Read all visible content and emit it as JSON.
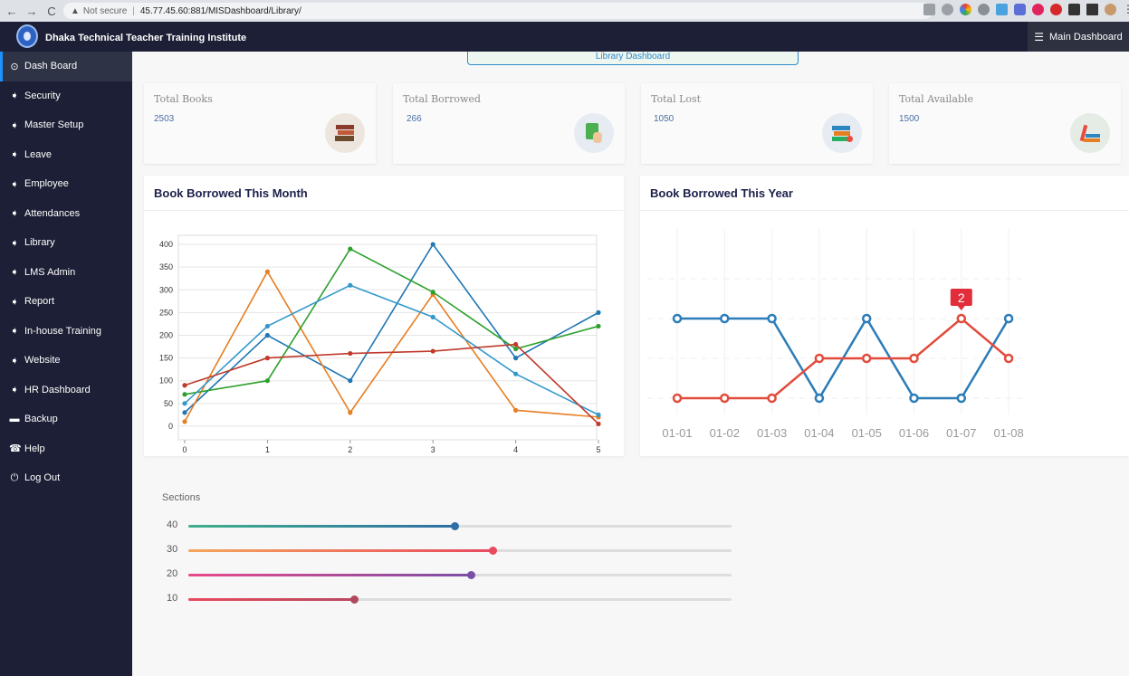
{
  "browser": {
    "not_secure": "Not secure",
    "url": "45.77.45.60:881/MISDashboard/Library/"
  },
  "header": {
    "title": "Dhaka Technical Teacher Training Institute",
    "main_dashboard": "Main Dashboard"
  },
  "sidebar": {
    "items": [
      {
        "label": "Dash Board",
        "icon": "dashboard-icon",
        "glyph": "⊙",
        "active": true
      },
      {
        "label": "Security",
        "icon": "tag-icon",
        "glyph": "➧"
      },
      {
        "label": "Master Setup",
        "icon": "tag-icon",
        "glyph": "➧"
      },
      {
        "label": "Leave",
        "icon": "tag-icon",
        "glyph": "➧"
      },
      {
        "label": "Employee",
        "icon": "tag-icon",
        "glyph": "➧"
      },
      {
        "label": "Attendances",
        "icon": "tag-icon",
        "glyph": "➧"
      },
      {
        "label": "Library",
        "icon": "tag-icon",
        "glyph": "➧"
      },
      {
        "label": "LMS Admin",
        "icon": "tag-icon",
        "glyph": "➧"
      },
      {
        "label": "Report",
        "icon": "tag-icon",
        "glyph": "➧"
      },
      {
        "label": "In-house Training",
        "icon": "tag-icon",
        "glyph": "➧"
      },
      {
        "label": "Website",
        "icon": "tag-icon",
        "glyph": "➧"
      },
      {
        "label": "HR Dashboard",
        "icon": "tag-icon",
        "glyph": "➧"
      },
      {
        "label": "Backup",
        "icon": "drive-icon",
        "glyph": "▬"
      },
      {
        "label": "Help",
        "icon": "phone-icon",
        "glyph": "☎"
      },
      {
        "label": "Log Out",
        "icon": "power-icon",
        "glyph": "⏻"
      }
    ]
  },
  "main": {
    "tab_label": "Library Dashboard",
    "stats": [
      {
        "title": "Total Books",
        "value": "2503",
        "icon": "books-icon",
        "bg": "#ede6df"
      },
      {
        "title": "Total Borrowed",
        "value": "266",
        "icon": "book-hand-icon",
        "bg": "#e6ecf2"
      },
      {
        "title": "Total Lost",
        "value": "1050",
        "icon": "lost-books-icon",
        "bg": "#e6ecf2"
      },
      {
        "title": "Total Available",
        "value": "1500",
        "icon": "available-books-icon",
        "bg": "#e5ebe5"
      }
    ],
    "sections": {
      "title": "Sections",
      "sliders": [
        {
          "label": "40",
          "value": 0.49,
          "from": "#3fb08a",
          "to": "#2e6fa5",
          "thumb": "#2e6fa5"
        },
        {
          "label": "30",
          "value": 0.56,
          "from": "#f5a65b",
          "to": "#e84a5f",
          "thumb": "#e84a5f"
        },
        {
          "label": "20",
          "value": 0.52,
          "from": "#e84a8a",
          "to": "#7b4fa5",
          "thumb": "#7b4fa5"
        },
        {
          "label": "10",
          "value": 0.305,
          "from": "#e84a5f",
          "to": "#b84a5f",
          "thumb": "#b04a5a"
        }
      ]
    }
  },
  "chart_data": [
    {
      "type": "line",
      "title": "Book Borrowed This Month",
      "x": [
        0,
        1,
        2,
        3,
        4,
        5
      ],
      "ylim": [
        -30,
        420
      ],
      "yticks": [
        0,
        50,
        100,
        150,
        200,
        250,
        300,
        350,
        400
      ],
      "grid": true,
      "series": [
        {
          "color": "#1f77b4",
          "values": [
            30,
            200,
            100,
            400,
            150,
            250
          ]
        },
        {
          "color": "#e67e22",
          "values": [
            10,
            340,
            30,
            290,
            35,
            20
          ]
        },
        {
          "color": "#2ca02c",
          "values": [
            70,
            100,
            390,
            295,
            170,
            220
          ]
        },
        {
          "color": "#3399cc",
          "values": [
            50,
            220,
            310,
            240,
            115,
            25
          ]
        },
        {
          "color": "#c0392b",
          "values": [
            90,
            150,
            160,
            165,
            180,
            5
          ]
        }
      ]
    },
    {
      "type": "line",
      "title": "Book Borrowed This Year",
      "categories": [
        "01-01",
        "01-02",
        "01-03",
        "01-04",
        "01-05",
        "01-06",
        "01-07",
        "01-08"
      ],
      "ylim": [
        0,
        3.5
      ],
      "grid": true,
      "annotation": {
        "series": 1,
        "index": 6,
        "text": "2"
      },
      "series": [
        {
          "color": "#2b7cb8",
          "values": [
            2,
            2,
            2,
            0,
            2,
            0,
            0,
            2
          ]
        },
        {
          "color": "#e24b3b",
          "values": [
            0,
            0,
            0,
            1,
            1,
            1,
            2,
            1
          ]
        }
      ]
    }
  ]
}
